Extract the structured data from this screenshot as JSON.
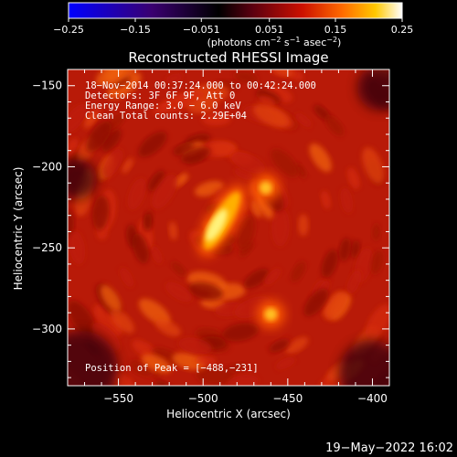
{
  "chart_data": {
    "type": "heatmap",
    "title": "Reconstructed RHESSI Image",
    "xlabel": "Heliocentric X (arcsec)",
    "ylabel": "Heliocentric Y (arcsec)",
    "xlim": [
      -580,
      -390
    ],
    "ylim": [
      -335,
      -140
    ],
    "x_ticks": [
      -550,
      -500,
      -450,
      -400
    ],
    "y_ticks": [
      -150,
      -200,
      -250,
      -300
    ],
    "x_tick_labels": [
      "−550",
      "−500",
      "−450",
      "−400"
    ],
    "y_tick_labels": [
      "−150",
      "−200",
      "−250",
      "−300"
    ],
    "colorbar": {
      "range": [
        -0.25,
        0.25
      ],
      "ticks": [
        -0.25,
        -0.15,
        -0.051,
        0.051,
        0.15,
        0.25
      ],
      "tick_labels": [
        "−0.25",
        "−0.15",
        "−0.051",
        "0.051",
        "0.15",
        "0.25"
      ],
      "unit_main": "(photons cm",
      "unit_sup1": "−2",
      "unit_mid": " s",
      "unit_sup2": "−1",
      "unit_mid2": " asec",
      "unit_sup3": "−2",
      "unit_end": ")",
      "colors": [
        "#0000ff",
        "#3a0070",
        "#000000",
        "#5a0010",
        "#cc1000",
        "#ff6a00",
        "#ffc800",
        "#ffffff"
      ]
    },
    "annotations": {
      "line1": "18−Nov−2014 00:37:24.000 to 00:42:24.000",
      "line2": "Detectors: 3F 6F 9F, Att 0",
      "line3": "Energy Range: 3.0 − 6.0 keV",
      "line4": "Clean    Total counts: 2.29E+04",
      "peak": "Position of Peak = [−488,−231]"
    },
    "sources": [
      {
        "x": -492,
        "y": -236,
        "value": 0.25
      },
      {
        "x": -463,
        "y": -213,
        "value": 0.16
      },
      {
        "x": -460,
        "y": -291,
        "value": 0.13
      }
    ],
    "peak": [
      -488,
      -231
    ]
  },
  "footer": {
    "timestamp": "19−May−2022 16:02"
  }
}
